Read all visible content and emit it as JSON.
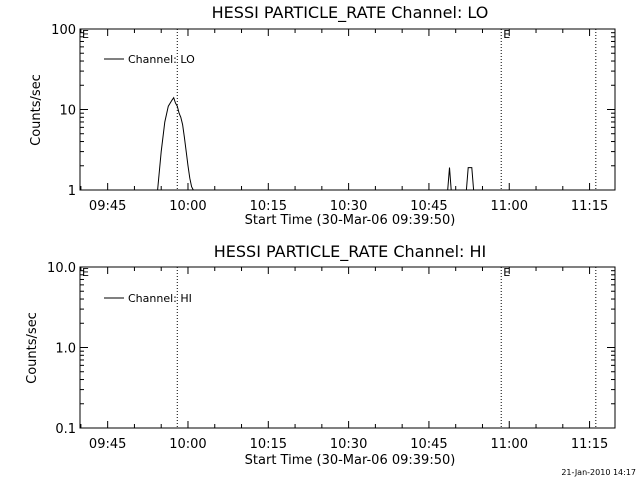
{
  "chart_data": [
    {
      "type": "line",
      "title": "HESSI PARTICLE_RATE Channel: LO",
      "xlabel": "Start Time (30-Mar-06 09:39:50)",
      "ylabel": "Counts/sec",
      "yscale": "log",
      "xlim": [
        "09:39:50",
        "11:19:45"
      ],
      "ylim": [
        1,
        100
      ],
      "x_tick_labels": [
        "09:45",
        "10:00",
        "10:15",
        "10:30",
        "10:45",
        "11:00",
        "11:15"
      ],
      "y_tick_labels": [
        "1",
        "10",
        "100"
      ],
      "y_tick_values": [
        1,
        10,
        100
      ],
      "legend": "top-left",
      "grid": false,
      "series": [
        {
          "name": "Channel: LO",
          "x": [
            "09:54:20",
            "09:55:00",
            "09:55:40",
            "09:56:20",
            "09:57:00",
            "09:57:20",
            "09:57:40",
            "09:58:00",
            "09:58:20",
            "09:58:40",
            "09:59:00",
            "09:59:20",
            "09:59:40",
            "10:00:00",
            "10:00:20",
            "10:00:40",
            "10:01:00",
            "10:48:30",
            "10:48:50",
            "10:49:10",
            "10:52:00",
            "10:52:20",
            "10:52:40",
            "10:53:00",
            "10:53:20"
          ],
          "y": [
            1,
            3,
            7,
            11,
            13,
            14,
            12,
            11,
            9,
            8,
            6.5,
            4.5,
            3,
            2,
            1.4,
            1.1,
            1,
            1,
            1.9,
            1,
            1,
            1.9,
            1.9,
            1.9,
            1
          ]
        }
      ],
      "annotations": [
        {
          "label": "E",
          "x": "09:39:50"
        },
        {
          "label": "",
          "x": "09:58:00"
        },
        {
          "label": "E",
          "x": "10:58:30"
        },
        {
          "label": "",
          "x": "11:16:10"
        }
      ]
    },
    {
      "type": "line",
      "title": "HESSI PARTICLE_RATE Channel: HI",
      "xlabel": "Start Time (30-Mar-06 09:39:50)",
      "ylabel": "Counts/sec",
      "yscale": "log",
      "xlim": [
        "09:39:50",
        "11:19:45"
      ],
      "ylim": [
        0.1,
        10
      ],
      "x_tick_labels": [
        "09:45",
        "10:00",
        "10:15",
        "10:30",
        "10:45",
        "11:00",
        "11:15"
      ],
      "y_tick_labels": [
        "0.1",
        "1.0",
        "10.0"
      ],
      "y_tick_values": [
        0.1,
        1,
        10
      ],
      "legend": "top-left",
      "grid": false,
      "series": [
        {
          "name": "Channel: HI",
          "x": [],
          "y": []
        }
      ],
      "annotations": [
        {
          "label": "E",
          "x": "09:39:50"
        },
        {
          "label": "",
          "x": "09:58:00"
        },
        {
          "label": "E",
          "x": "10:58:30"
        },
        {
          "label": "",
          "x": "11:16:10"
        }
      ]
    }
  ],
  "footer": {
    "timestamp": "21-Jan-2010 14:17"
  }
}
